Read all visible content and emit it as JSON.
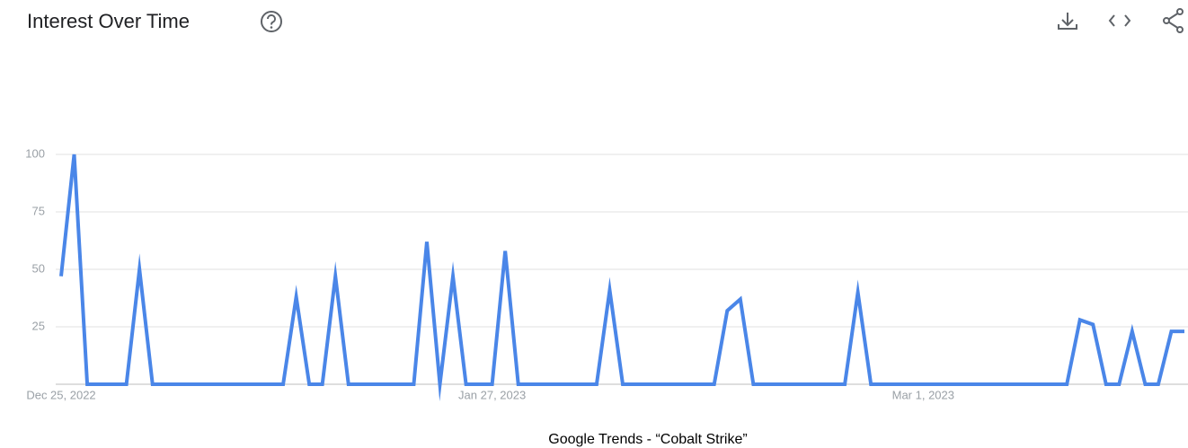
{
  "chart_data": {
    "type": "line",
    "title": "Interest Over Time",
    "caption": "Google Trends - “Cobalt Strike”",
    "categories": [
      "Dec 25, 2022",
      null,
      null,
      null,
      null,
      null,
      null,
      null,
      null,
      null,
      null,
      null,
      null,
      null,
      null,
      null,
      null,
      null,
      null,
      null,
      null,
      null,
      null,
      null,
      null,
      null,
      null,
      null,
      null,
      null,
      null,
      null,
      null,
      "Jan 27, 2023",
      null,
      null,
      null,
      null,
      null,
      null,
      null,
      null,
      null,
      null,
      null,
      null,
      null,
      null,
      null,
      null,
      null,
      null,
      null,
      null,
      null,
      null,
      null,
      null,
      null,
      null,
      null,
      null,
      null,
      null,
      null,
      null,
      "Mar 1, 2023",
      null,
      null,
      null,
      null,
      null,
      null,
      null,
      null,
      null,
      null,
      null,
      null,
      null,
      null,
      null,
      null,
      null,
      null,
      null,
      null
    ],
    "values": [
      47,
      100,
      0,
      0,
      0,
      0,
      50,
      0,
      0,
      0,
      0,
      0,
      0,
      0,
      0,
      0,
      0,
      0,
      38,
      0,
      0,
      47,
      0,
      0,
      0,
      0,
      0,
      0,
      62,
      0,
      47,
      0,
      0,
      0,
      58,
      0,
      0,
      0,
      0,
      0,
      0,
      0,
      41,
      0,
      0,
      0,
      0,
      0,
      0,
      0,
      0,
      32,
      37,
      0,
      0,
      0,
      0,
      0,
      0,
      0,
      0,
      40,
      0,
      0,
      0,
      0,
      0,
      0,
      0,
      0,
      0,
      0,
      0,
      0,
      0,
      0,
      0,
      0,
      28,
      26,
      0,
      0,
      23,
      0,
      0,
      23,
      23
    ],
    "color": "#4a86e8",
    "ylim": [
      0,
      100
    ],
    "yticks": [
      25,
      50,
      75,
      100
    ],
    "grid": true
  }
}
